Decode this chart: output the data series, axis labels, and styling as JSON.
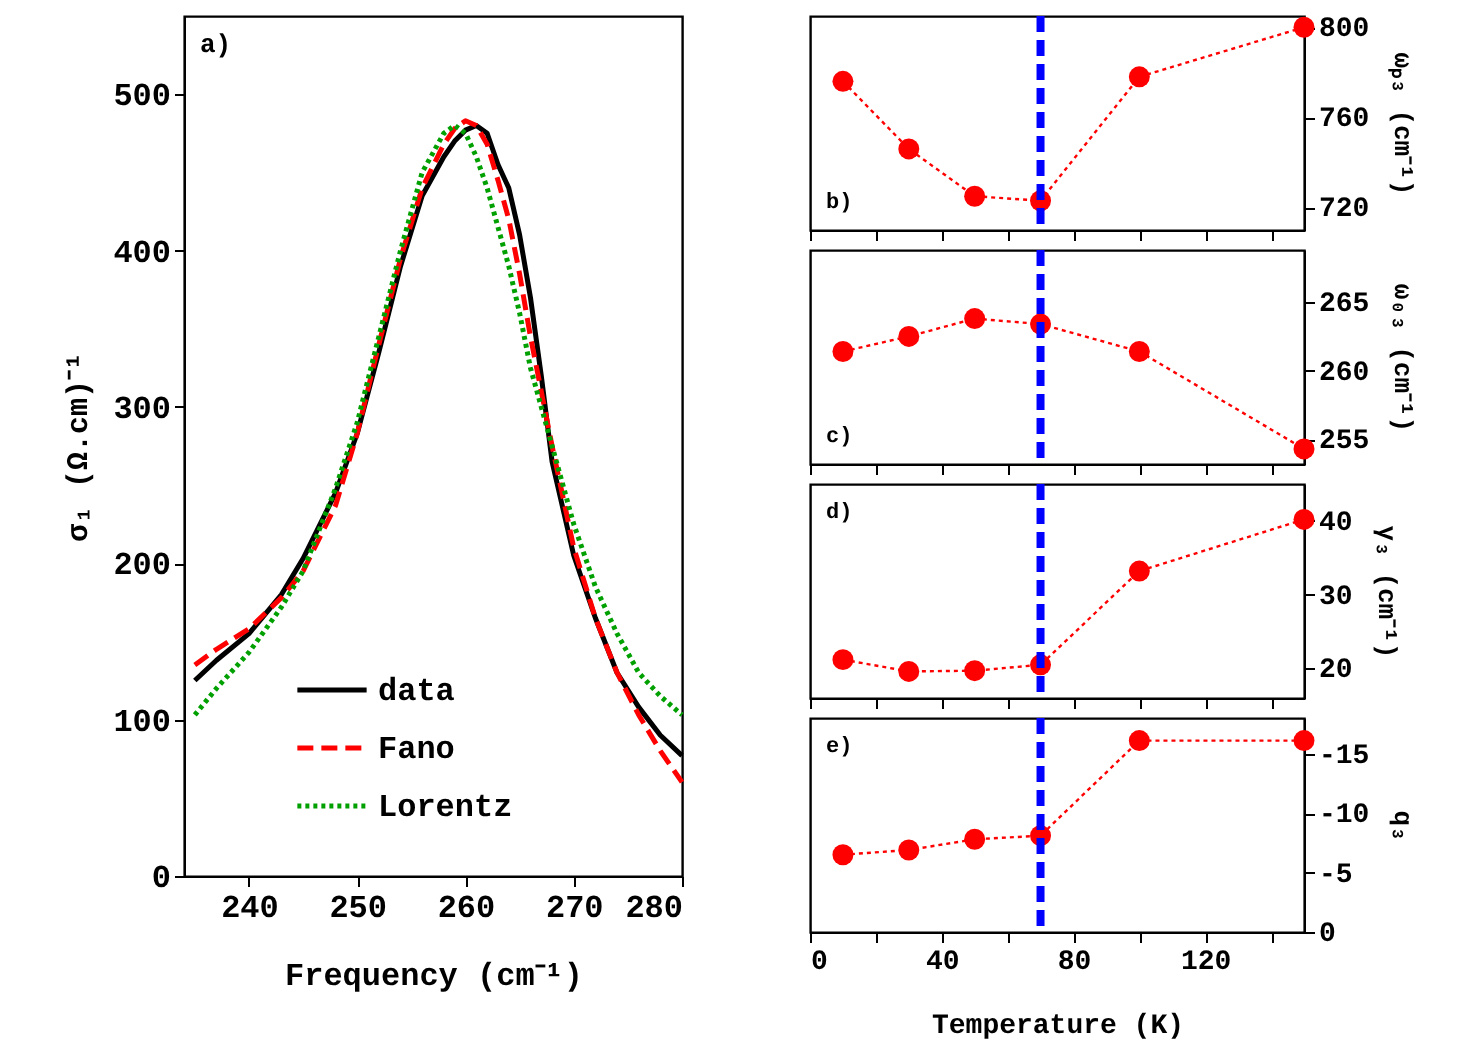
{
  "chart_data": [
    {
      "type": "line",
      "xlabel": "Frequency (cm⁻¹)",
      "ylabel": "σ₁ (Ω.cm)⁻¹",
      "annotations": [
        "a)"
      ],
      "x": [
        235,
        237,
        240,
        243,
        245,
        248,
        250,
        252,
        254,
        256,
        258,
        259,
        260,
        261,
        262,
        263,
        264,
        265,
        266,
        267,
        268,
        270,
        272,
        274,
        276,
        278,
        280
      ],
      "series": [
        {
          "name": "data",
          "color": "#000000",
          "line_style": "solid",
          "values": [
            125,
            138,
            155,
            180,
            203,
            245,
            283,
            335,
            390,
            435,
            460,
            470,
            477,
            480,
            475,
            455,
            440,
            410,
            370,
            320,
            265,
            205,
            165,
            130,
            108,
            90,
            77
          ]
        },
        {
          "name": "Fano",
          "color": "#ff0000",
          "line_style": "dashed",
          "values": [
            135,
            145,
            158,
            178,
            195,
            237,
            283,
            340,
            395,
            440,
            468,
            478,
            483,
            480,
            468,
            445,
            420,
            385,
            345,
            310,
            275,
            210,
            165,
            130,
            103,
            80,
            60
          ]
        },
        {
          "name": "Lorentz",
          "color": "#00a000",
          "line_style": "dotted",
          "values": [
            103,
            120,
            143,
            172,
            195,
            248,
            290,
            345,
            400,
            450,
            475,
            480,
            475,
            460,
            440,
            415,
            390,
            360,
            325,
            300,
            275,
            225,
            185,
            155,
            130,
            115,
            103
          ]
        }
      ],
      "xlim": [
        234,
        280
      ],
      "xticks": [
        240,
        250,
        260,
        270,
        280
      ],
      "ylim": [
        0,
        550
      ],
      "yticks": [
        0,
        100,
        200,
        300,
        400,
        500
      ],
      "legend": "bottom",
      "grid": false
    },
    {
      "type": "line",
      "y2label": "ωₚ₃ (cm⁻¹)",
      "annotations": [
        "b)"
      ],
      "x": [
        10,
        30,
        50,
        70,
        100,
        150
      ],
      "series": [
        {
          "color": "#ff0000",
          "axis": "y2",
          "values": [
            776,
            746,
            725,
            723,
            778,
            800
          ]
        }
      ],
      "xlim": [
        0,
        150
      ],
      "xticks": [
        {
          "value": 0,
          "label": null
        },
        {
          "value": 20,
          "label": null
        },
        {
          "value": 40,
          "label": null
        },
        {
          "value": 60,
          "label": null
        },
        {
          "value": 80,
          "label": null
        },
        {
          "value": 100,
          "label": null
        },
        {
          "value": 120,
          "label": null
        },
        {
          "value": 140,
          "label": null
        }
      ],
      "y2lim": [
        710,
        805
      ],
      "y2ticks": [
        720,
        760,
        800
      ],
      "marker": "circle",
      "line_style": "dotted",
      "tick_labels": "y",
      "grid": false,
      "ref_lines": [
        {
          "axis": "x",
          "value": 70,
          "color": "#0000ff",
          "line_style": "dashed"
        }
      ]
    },
    {
      "type": "line",
      "y2label": "ω₀₃ (cm⁻¹)",
      "annotations": [
        "c)"
      ],
      "x": [
        10,
        30,
        50,
        70,
        100,
        150
      ],
      "series": [
        {
          "color": "#ff0000",
          "axis": "y2",
          "values": [
            261.4,
            262.5,
            263.8,
            263.4,
            261.4,
            254.3
          ]
        }
      ],
      "xlim": [
        0,
        150
      ],
      "xticks": [
        {
          "value": 0,
          "label": null
        },
        {
          "value": 20,
          "label": null
        },
        {
          "value": 40,
          "label": null
        },
        {
          "value": 60,
          "label": null
        },
        {
          "value": 80,
          "label": null
        },
        {
          "value": 100,
          "label": null
        },
        {
          "value": 120,
          "label": null
        },
        {
          "value": 140,
          "label": null
        }
      ],
      "y2lim": [
        253.2,
        268.8
      ],
      "y2ticks": [
        255,
        260,
        265
      ],
      "marker": "circle",
      "line_style": "dotted",
      "tick_labels": "y",
      "grid": false,
      "ref_lines": [
        {
          "axis": "x",
          "value": 70,
          "color": "#0000ff",
          "line_style": "dashed"
        }
      ]
    },
    {
      "type": "line",
      "y2label": "γ₃ (cm⁻¹)",
      "annotations": [
        "d)"
      ],
      "x": [
        10,
        30,
        50,
        70,
        100,
        150
      ],
      "series": [
        {
          "color": "#ff0000",
          "axis": "y2",
          "values": [
            21.2,
            19.6,
            19.7,
            20.5,
            33.2,
            40.2
          ]
        }
      ],
      "xlim": [
        0,
        150
      ],
      "xticks": [
        {
          "value": 0,
          "label": null
        },
        {
          "value": 20,
          "label": null
        },
        {
          "value": 40,
          "label": null
        },
        {
          "value": 60,
          "label": null
        },
        {
          "value": 80,
          "label": null
        },
        {
          "value": 100,
          "label": null
        },
        {
          "value": 120,
          "label": null
        },
        {
          "value": 140,
          "label": null
        }
      ],
      "y2lim": [
        16,
        45
      ],
      "y2ticks": [
        20,
        30,
        40
      ],
      "marker": "circle",
      "line_style": "dotted",
      "tick_labels": "y",
      "grid": false,
      "ref_lines": [
        {
          "axis": "x",
          "value": 70,
          "color": "#0000ff",
          "line_style": "dashed"
        }
      ]
    },
    {
      "type": "line",
      "xlabel": "Temperature (K)",
      "y2label": "q₃",
      "annotations": [
        "e)"
      ],
      "x": [
        10,
        30,
        50,
        70,
        100,
        150
      ],
      "series": [
        {
          "color": "#ff0000",
          "axis": "y2",
          "values": [
            -6.5,
            -6.9,
            -7.8,
            -8.1,
            -16.1,
            -16.1
          ]
        }
      ],
      "xlim": [
        0,
        150
      ],
      "xticks": [
        0,
        {
          "value": 20,
          "label": null
        },
        40,
        {
          "value": 60,
          "label": null
        },
        80,
        {
          "value": 100,
          "label": null
        },
        120,
        {
          "value": 140,
          "label": null
        }
      ],
      "y2lim": [
        0,
        -18
      ],
      "y2ticks": [
        0,
        -5,
        -10,
        -15
      ],
      "marker": "circle",
      "line_style": "dotted",
      "grid": false,
      "ref_lines": [
        {
          "axis": "x",
          "value": 70,
          "color": "#0000ff",
          "line_style": "dashed"
        }
      ]
    }
  ]
}
